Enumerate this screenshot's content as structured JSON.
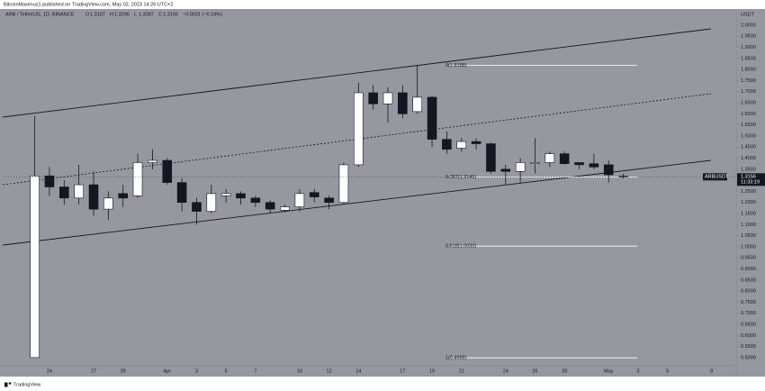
{
  "header": {
    "published": "BitcoinMaximus1 published on TradingView.com, May 02, 2023 14:26 UTC+2",
    "symbol": "ARB / TetherUS, 1D, BINANCE",
    "ohlc": [
      "O",
      "1.3187",
      "H",
      "1.3296",
      "L",
      "1.3087",
      "C",
      "1.3156",
      "−0.0031 (−0.24%)"
    ]
  },
  "footer": {
    "brand": "TradingView"
  },
  "chart_data": {
    "type": "candlestick",
    "currency": "USDT",
    "categories": [
      null,
      "24",
      null,
      null,
      "27",
      null,
      "29",
      null,
      null,
      "Apr",
      null,
      "3",
      null,
      "5",
      null,
      "7",
      null,
      null,
      "10",
      null,
      "12",
      null,
      "14",
      null,
      null,
      "17",
      null,
      "19",
      null,
      "21",
      null,
      null,
      "24",
      null,
      "26",
      null,
      "28",
      null,
      null,
      "May",
      null,
      "3",
      null,
      "5",
      null,
      null,
      "8"
    ],
    "open": [
      0.5,
      1.32,
      1.27,
      1.22,
      1.28,
      1.17,
      1.24,
      1.23,
      1.38,
      1.39,
      1.29,
      1.2,
      1.16,
      1.23,
      1.24,
      1.22,
      1.2,
      1.165,
      1.18,
      1.245,
      1.22,
      1.2,
      1.37,
      1.695,
      1.645,
      1.695,
      1.61,
      1.675,
      1.485,
      1.445,
      1.475,
      1.465,
      1.35,
      1.34,
      1.375,
      1.38,
      1.42,
      1.38,
      1.375,
      1.37,
      1.3187,
      null,
      null,
      null,
      null,
      null,
      null
    ],
    "high": [
      1.59,
      1.36,
      1.3,
      1.37,
      1.34,
      1.25,
      1.28,
      1.42,
      1.44,
      1.4,
      1.31,
      1.22,
      1.28,
      1.26,
      1.25,
      1.23,
      1.21,
      1.19,
      1.26,
      1.26,
      1.23,
      1.38,
      1.74,
      1.73,
      1.72,
      1.73,
      1.82,
      1.68,
      1.52,
      1.49,
      1.49,
      1.47,
      1.37,
      1.4,
      1.49,
      1.43,
      1.43,
      1.38,
      1.42,
      1.39,
      1.3296,
      null,
      null,
      null,
      null,
      null,
      null
    ],
    "low": [
      0.5,
      1.23,
      1.19,
      1.19,
      1.14,
      1.12,
      1.18,
      1.22,
      1.35,
      1.28,
      1.16,
      1.1,
      1.15,
      1.2,
      1.19,
      1.18,
      1.15,
      1.155,
      1.16,
      1.2,
      1.17,
      1.19,
      1.36,
      1.62,
      1.56,
      1.58,
      1.6,
      1.45,
      1.42,
      1.43,
      1.44,
      1.33,
      1.28,
      1.29,
      1.33,
      1.36,
      1.37,
      1.35,
      1.35,
      1.29,
      1.3087,
      null,
      null,
      null,
      null,
      null,
      null
    ],
    "close": [
      1.32,
      1.27,
      1.22,
      1.28,
      1.17,
      1.22,
      1.22,
      1.38,
      1.39,
      1.29,
      1.2,
      1.16,
      1.24,
      1.24,
      1.22,
      1.2,
      1.17,
      1.18,
      1.24,
      1.225,
      1.2,
      1.37,
      1.695,
      1.645,
      1.695,
      1.6,
      1.675,
      1.485,
      1.44,
      1.475,
      1.465,
      1.34,
      1.34,
      1.38,
      1.38,
      1.42,
      1.375,
      1.37,
      1.36,
      1.325,
      1.3156,
      null,
      null,
      null,
      null,
      null,
      null
    ],
    "up_color": "#ffffff",
    "down_color": "#131722",
    "ylim": [
      0.463,
      2.073
    ],
    "yticks": [
      {
        "value": 2.0,
        "label": "2.0000"
      },
      {
        "value": 1.95,
        "label": "1.9500"
      },
      {
        "value": 1.9,
        "label": "1.9000"
      },
      {
        "value": 1.85,
        "label": "1.8500"
      },
      {
        "value": 1.8,
        "label": "1.8000"
      },
      {
        "value": 1.75,
        "label": "1.7500"
      },
      {
        "value": 1.7,
        "label": "1.7000"
      },
      {
        "value": 1.65,
        "label": "1.6500"
      },
      {
        "value": 1.6,
        "label": "1.6000"
      },
      {
        "value": 1.55,
        "label": "1.5500"
      },
      {
        "value": 1.5,
        "label": "1.5000"
      },
      {
        "value": 1.45,
        "label": "1.4500"
      },
      {
        "value": 1.4,
        "label": "1.4000"
      },
      {
        "value": 1.35,
        "label": "1.3500"
      },
      {
        "value": 1.3,
        "label": "1.3000"
      },
      {
        "value": 1.25,
        "label": "1.2500"
      },
      {
        "value": 1.2,
        "label": "1.2000"
      },
      {
        "value": 1.15,
        "label": "1.1500"
      },
      {
        "value": 1.1,
        "label": "1.1000"
      },
      {
        "value": 1.05,
        "label": "1.0500"
      },
      {
        "value": 1.0,
        "label": "1.0000"
      },
      {
        "value": 0.95,
        "label": "0.9500"
      },
      {
        "value": 0.9,
        "label": "0.9000"
      },
      {
        "value": 0.85,
        "label": "0.8500"
      },
      {
        "value": 0.8,
        "label": "0.8000"
      },
      {
        "value": 0.75,
        "label": "0.7500"
      },
      {
        "value": 0.7,
        "label": "0.7000"
      },
      {
        "value": 0.65,
        "label": "0.6500"
      },
      {
        "value": 0.6,
        "label": "0.6000"
      },
      {
        "value": 0.55,
        "label": "0.5500"
      },
      {
        "value": 0.5,
        "label": "0.5000"
      }
    ],
    "fib_levels": [
      {
        "value": 1.8188,
        "label": "0(1.8188)"
      },
      {
        "value": 1.3145,
        "label": "0.382(1.3145)"
      },
      {
        "value": 1.003,
        "label": "0.618(1.0030)"
      },
      {
        "value": 0.4988,
        "label": "1(0.4988)"
      }
    ],
    "fib_color": "#ffffff",
    "last_price": {
      "symbol": "ARBUSDT",
      "value": 1.3156,
      "countdown": "11:33:19"
    },
    "background": "#9598a1"
  }
}
